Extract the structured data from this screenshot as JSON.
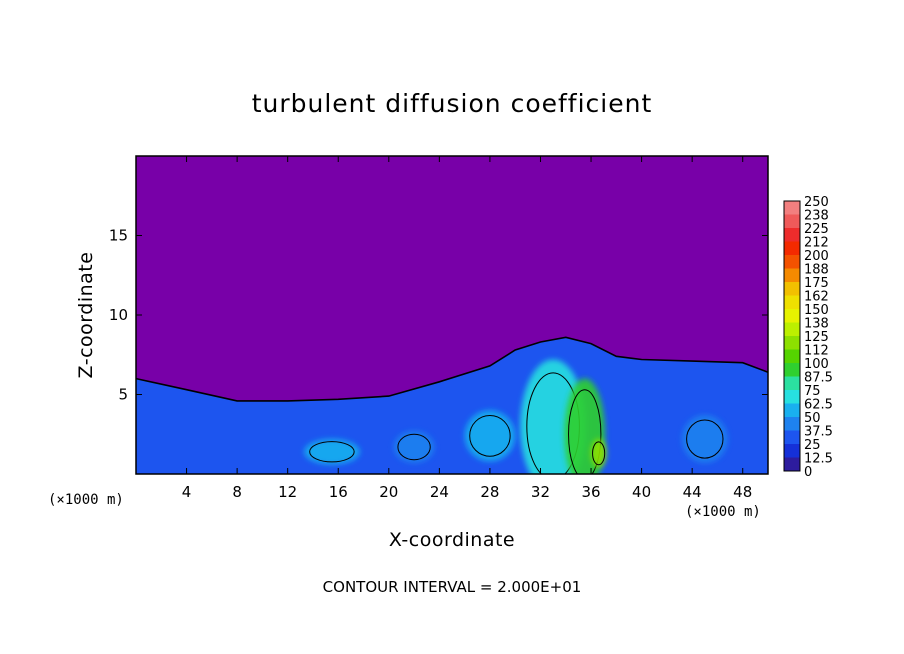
{
  "chart_data": {
    "type": "heatmap",
    "title": "turbulent diffusion coefficient",
    "xlabel": "X-coordinate",
    "ylabel": "Z-coordinate",
    "x_unit_label": "(×1000 m)",
    "footer": "CONTOUR INTERVAL = 2.000E+01",
    "xlim": [
      0,
      50
    ],
    "ylim": [
      0,
      20
    ],
    "x_ticks": [
      4,
      8,
      12,
      16,
      20,
      24,
      28,
      32,
      36,
      40,
      44,
      48
    ],
    "y_ticks": [
      5,
      10,
      15
    ],
    "contour_interval": 20,
    "colorbar": {
      "levels": [
        "250",
        "238",
        "225",
        "212",
        "200",
        "188",
        "175",
        "162",
        "150",
        "138",
        "125",
        "112",
        "100",
        "87.5",
        "75",
        "62.5",
        "50",
        "37.5",
        "25",
        "12.5",
        "0"
      ],
      "colors": [
        "#f27f7f",
        "#ef5a5a",
        "#ee2c2c",
        "#f42a00",
        "#f45200",
        "#f58a00",
        "#f2c000",
        "#efe000",
        "#e7f300",
        "#bcf000",
        "#8de000",
        "#55d400",
        "#2fd02f",
        "#2be0a0",
        "#27e0e0",
        "#19b0ef",
        "#1e82ef",
        "#1d55ef",
        "#1530d8",
        "#2d1c9e",
        "#7800a8"
      ]
    },
    "boundary_layer_top": [
      {
        "x": 0,
        "z": 6.0
      },
      {
        "x": 4,
        "z": 5.3
      },
      {
        "x": 8,
        "z": 4.6
      },
      {
        "x": 12,
        "z": 4.6
      },
      {
        "x": 16,
        "z": 4.7
      },
      {
        "x": 20,
        "z": 4.9
      },
      {
        "x": 24,
        "z": 5.8
      },
      {
        "x": 28,
        "z": 6.8
      },
      {
        "x": 30,
        "z": 7.8
      },
      {
        "x": 32,
        "z": 8.3
      },
      {
        "x": 34,
        "z": 8.6
      },
      {
        "x": 36,
        "z": 8.2
      },
      {
        "x": 38,
        "z": 7.4
      },
      {
        "x": 40,
        "z": 7.2
      },
      {
        "x": 44,
        "z": 7.1
      },
      {
        "x": 48,
        "z": 7.0
      },
      {
        "x": 50,
        "z": 6.4
      }
    ],
    "hotspots": [
      {
        "x": 33,
        "z": 3.0,
        "rx": 2.6,
        "rz": 4.2,
        "value": 75
      },
      {
        "x": 35.5,
        "z": 2.5,
        "rx": 1.6,
        "rz": 3.5,
        "value": 100
      },
      {
        "x": 36.6,
        "z": 1.3,
        "rx": 0.6,
        "rz": 0.9,
        "value": 120
      },
      {
        "x": 28,
        "z": 2.4,
        "rx": 2.0,
        "rz": 1.6,
        "value": 62.5
      },
      {
        "x": 15.5,
        "z": 1.4,
        "rx": 2.2,
        "rz": 0.8,
        "value": 62.5
      },
      {
        "x": 45,
        "z": 2.2,
        "rx": 1.8,
        "rz": 1.5,
        "value": 50
      },
      {
        "x": 22,
        "z": 1.7,
        "rx": 1.6,
        "rz": 1.0,
        "value": 50
      }
    ]
  }
}
